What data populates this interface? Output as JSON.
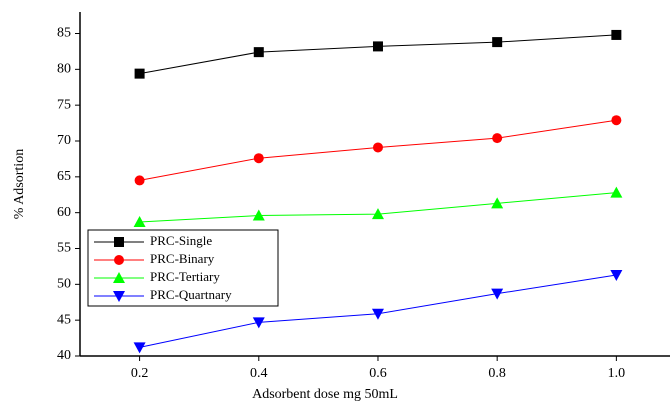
{
  "chart_data": {
    "type": "line",
    "x_label": "Adsorbent dose mg 50mL",
    "y_label": "% Adsortion",
    "x": [
      0.2,
      0.4,
      0.6,
      0.8,
      1.0
    ],
    "series": [
      {
        "name": "PRC-Single",
        "color": "#000000",
        "marker": "square",
        "values": [
          79.4,
          82.4,
          83.2,
          83.8,
          84.8
        ]
      },
      {
        "name": "PRC-Binary",
        "color": "#ff0000",
        "marker": "circle",
        "values": [
          64.5,
          67.6,
          69.1,
          70.4,
          72.9
        ]
      },
      {
        "name": "PRC-Tertiary",
        "color": "#00ff00",
        "marker": "triangle-up",
        "values": [
          58.7,
          59.6,
          59.8,
          61.3,
          62.8
        ]
      },
      {
        "name": "PRC-Quartnary",
        "color": "#0000ff",
        "marker": "triangle-down",
        "values": [
          41.2,
          44.7,
          45.9,
          48.7,
          51.3
        ]
      }
    ],
    "xlim": [
      0.1,
      1.09
    ],
    "ylim": [
      40,
      88
    ],
    "xticks": [
      0.2,
      0.4,
      0.6,
      {
        "value": 0.8,
        "label": "0.8"
      },
      {
        "value": 1.0,
        "label": "1.0"
      }
    ],
    "yticks": [
      40,
      45,
      50,
      55,
      60,
      65,
      70,
      75,
      80,
      85
    ],
    "legend": "center-left",
    "grid": false
  }
}
